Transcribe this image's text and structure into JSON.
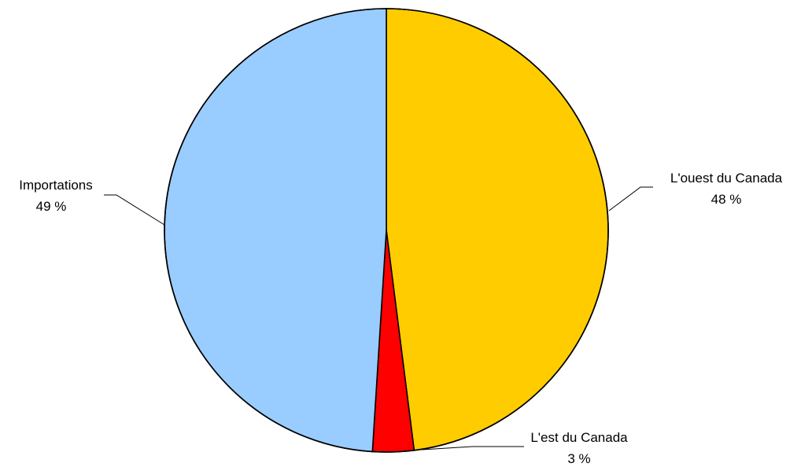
{
  "chart_data": {
    "type": "pie",
    "start": "top",
    "direction": "clockwise",
    "slices": [
      {
        "name": "L'ouest du Canada",
        "value": 48,
        "value_label": "48 %",
        "color": "#FFCC00"
      },
      {
        "name": "L'est du Canada",
        "value": 3,
        "value_label": "3 %",
        "color": "#FF0000"
      },
      {
        "name": "Importations",
        "value": 49,
        "value_label": "49 %",
        "color": "#99CCFF"
      }
    ]
  }
}
